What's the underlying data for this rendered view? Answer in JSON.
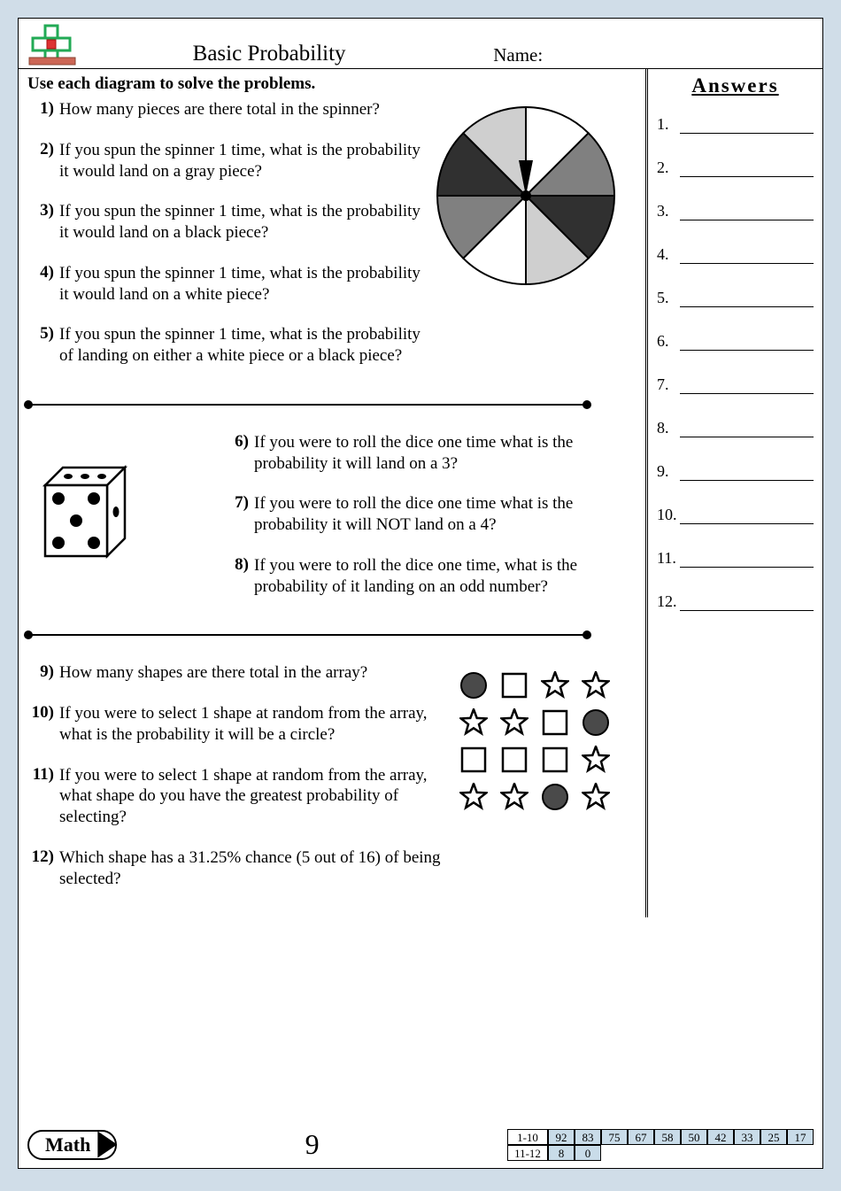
{
  "header": {
    "title": "Basic Probability",
    "name_label": "Name:"
  },
  "instructions": "Use each diagram to solve the problems.",
  "answers_title": "Answers",
  "answer_numbers": [
    "1.",
    "2.",
    "3.",
    "4.",
    "5.",
    "6.",
    "7.",
    "8.",
    "9.",
    "10.",
    "11.",
    "12."
  ],
  "spinner": {
    "slices": 8,
    "colors": [
      "#ffffff",
      "#808080",
      "#303030",
      "#cfcfcf",
      "#ffffff",
      "#808080",
      "#303030",
      "#cfcfcf"
    ],
    "stroke": "#000000",
    "radius": 100
  },
  "dice": {
    "pips": 5,
    "body_fill": "#ffffff",
    "stroke": "#000000"
  },
  "array": {
    "rows": [
      [
        "circle",
        "square",
        "star",
        "star"
      ],
      [
        "star",
        "star",
        "square",
        "circle"
      ],
      [
        "square",
        "square",
        "square",
        "star"
      ],
      [
        "star",
        "star",
        "circle",
        "star"
      ]
    ],
    "colors": {
      "fill": "#ffffff",
      "stroke": "#000000",
      "circle_fill": "#4a4a4a"
    }
  },
  "questions_s1": [
    {
      "n": "1)",
      "t": "How many pieces are there total in the spinner?"
    },
    {
      "n": "2)",
      "t": "If you spun the spinner 1 time, what is the probability it would land on a gray piece?"
    },
    {
      "n": "3)",
      "t": "If you spun the spinner 1 time, what is the probability it would land on a black piece?"
    },
    {
      "n": "4)",
      "t": "If you spun the spinner 1 time, what is the probability it would land on a white piece?"
    },
    {
      "n": "5)",
      "t": "If you spun the spinner 1 time, what is the probability of landing on either a white piece or a black piece?"
    }
  ],
  "questions_s2": [
    {
      "n": "6)",
      "t": "If you were to roll the dice one time what is the probability it will land on a 3?"
    },
    {
      "n": "7)",
      "t": "If you were to roll the dice one time what is the probability it will NOT land on a 4?"
    },
    {
      "n": "8)",
      "t": "If you were to roll the dice one time, what is the probability of it landing on an odd number?"
    }
  ],
  "questions_s3": [
    {
      "n": "9)",
      "t": "How many shapes are there total in the array?"
    },
    {
      "n": "10)",
      "t": "If you were to select 1 shape at random from the array, what is the probability it will be a circle?"
    },
    {
      "n": "11)",
      "t": "If you were to select 1 shape at random from the array, what shape do you have the greatest probability of selecting?"
    },
    {
      "n": "12)",
      "t": "Which shape has a 31.25% chance (5 out of 16) of being selected?"
    }
  ],
  "footer": {
    "badge": "Math",
    "page_number": "9",
    "score_rows": [
      {
        "label": "1-10",
        "cells": [
          "92",
          "83",
          "75",
          "67",
          "58",
          "50",
          "42",
          "33",
          "25",
          "17"
        ],
        "shaded": true
      },
      {
        "label": "11-12",
        "cells": [
          "8",
          "0"
        ],
        "shaded": true
      }
    ]
  }
}
